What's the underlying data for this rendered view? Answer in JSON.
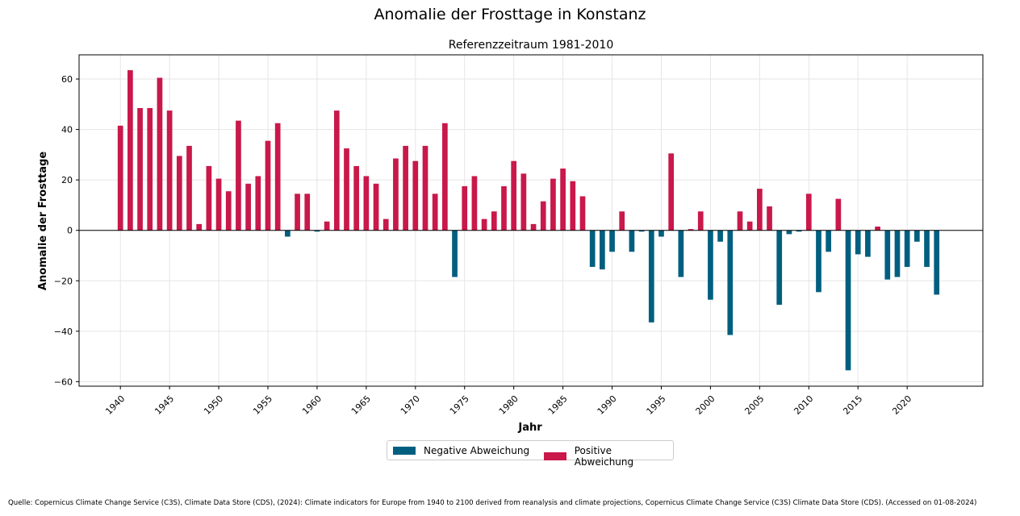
{
  "title": "Anomalie der Frosttage in Konstanz",
  "source": "Quelle: Copernicus Climate Change Service (C3S), Climate Data Store (CDS), (2024): Climate indicators for Europe from 1940 to 2100 derived from reanalysis and climate projections, Copernicus Climate Change Service (C3S) Climate Data Store (CDS). (Accessed on 01-08-2024)",
  "colors": {
    "positive": "#c9184a",
    "negative": "#005f7f",
    "zero_line": "#000000",
    "grid": "#e5e5e5"
  },
  "chart_data": {
    "type": "bar",
    "title": "Anomalie der Frosttage in Konstanz",
    "subtitle": "Referenzzeitraum 1981-2010",
    "xlabel": "Jahr",
    "ylabel": "Anomalie der Frosttage",
    "xlim": [
      1935.8,
      2027.7
    ],
    "ylim": [
      -61.8,
      69.6
    ],
    "xticks": [
      1940,
      1945,
      1950,
      1955,
      1960,
      1965,
      1970,
      1975,
      1980,
      1985,
      1990,
      1995,
      2000,
      2005,
      2010,
      2015,
      2020
    ],
    "yticks": [
      60,
      40,
      20,
      0,
      -20,
      -40,
      -60
    ],
    "ytick_labels": [
      "60",
      "40",
      "20",
      "0",
      "−20",
      "−40",
      "−60"
    ],
    "grid": true,
    "legend_position": "below",
    "legend": [
      "Negative Abweichung",
      "Positive Abweichung"
    ],
    "x": [
      1940,
      1941,
      1942,
      1943,
      1944,
      1945,
      1946,
      1947,
      1948,
      1949,
      1950,
      1951,
      1952,
      1953,
      1954,
      1955,
      1956,
      1957,
      1958,
      1959,
      1960,
      1961,
      1962,
      1963,
      1964,
      1965,
      1966,
      1967,
      1968,
      1969,
      1970,
      1971,
      1972,
      1973,
      1974,
      1975,
      1976,
      1977,
      1978,
      1979,
      1980,
      1981,
      1982,
      1983,
      1984,
      1985,
      1986,
      1987,
      1988,
      1989,
      1990,
      1991,
      1992,
      1993,
      1994,
      1995,
      1996,
      1997,
      1998,
      1999,
      2000,
      2001,
      2002,
      2003,
      2004,
      2005,
      2006,
      2007,
      2008,
      2009,
      2010,
      2011,
      2012,
      2013,
      2014,
      2015,
      2016,
      2017,
      2018,
      2019,
      2020,
      2021,
      2022,
      2023
    ],
    "values": [
      41.5,
      63.5,
      48.5,
      48.5,
      60.5,
      47.5,
      29.5,
      33.5,
      2.5,
      25.5,
      20.5,
      15.5,
      43.5,
      18.5,
      21.5,
      35.5,
      42.5,
      -2.5,
      14.5,
      14.5,
      -0.5,
      3.5,
      47.5,
      32.5,
      25.5,
      21.5,
      18.5,
      4.5,
      28.5,
      33.5,
      27.5,
      33.5,
      14.5,
      42.5,
      -18.5,
      17.5,
      21.5,
      4.5,
      7.5,
      17.5,
      27.5,
      22.5,
      2.5,
      11.5,
      20.5,
      24.5,
      19.5,
      13.5,
      -14.5,
      -15.5,
      -8.5,
      7.5,
      -8.5,
      -0.5,
      -36.5,
      -2.5,
      30.5,
      -18.5,
      0.5,
      7.5,
      -27.5,
      -4.5,
      -41.5,
      7.5,
      3.5,
      16.5,
      9.5,
      -29.5,
      -1.5,
      -0.5,
      14.5,
      -24.5,
      -8.5,
      12.5,
      -55.5,
      -9.5,
      -10.5,
      1.5,
      -19.5,
      -18.5,
      -14.5,
      -4.5,
      -14.5,
      -25.5
    ]
  }
}
